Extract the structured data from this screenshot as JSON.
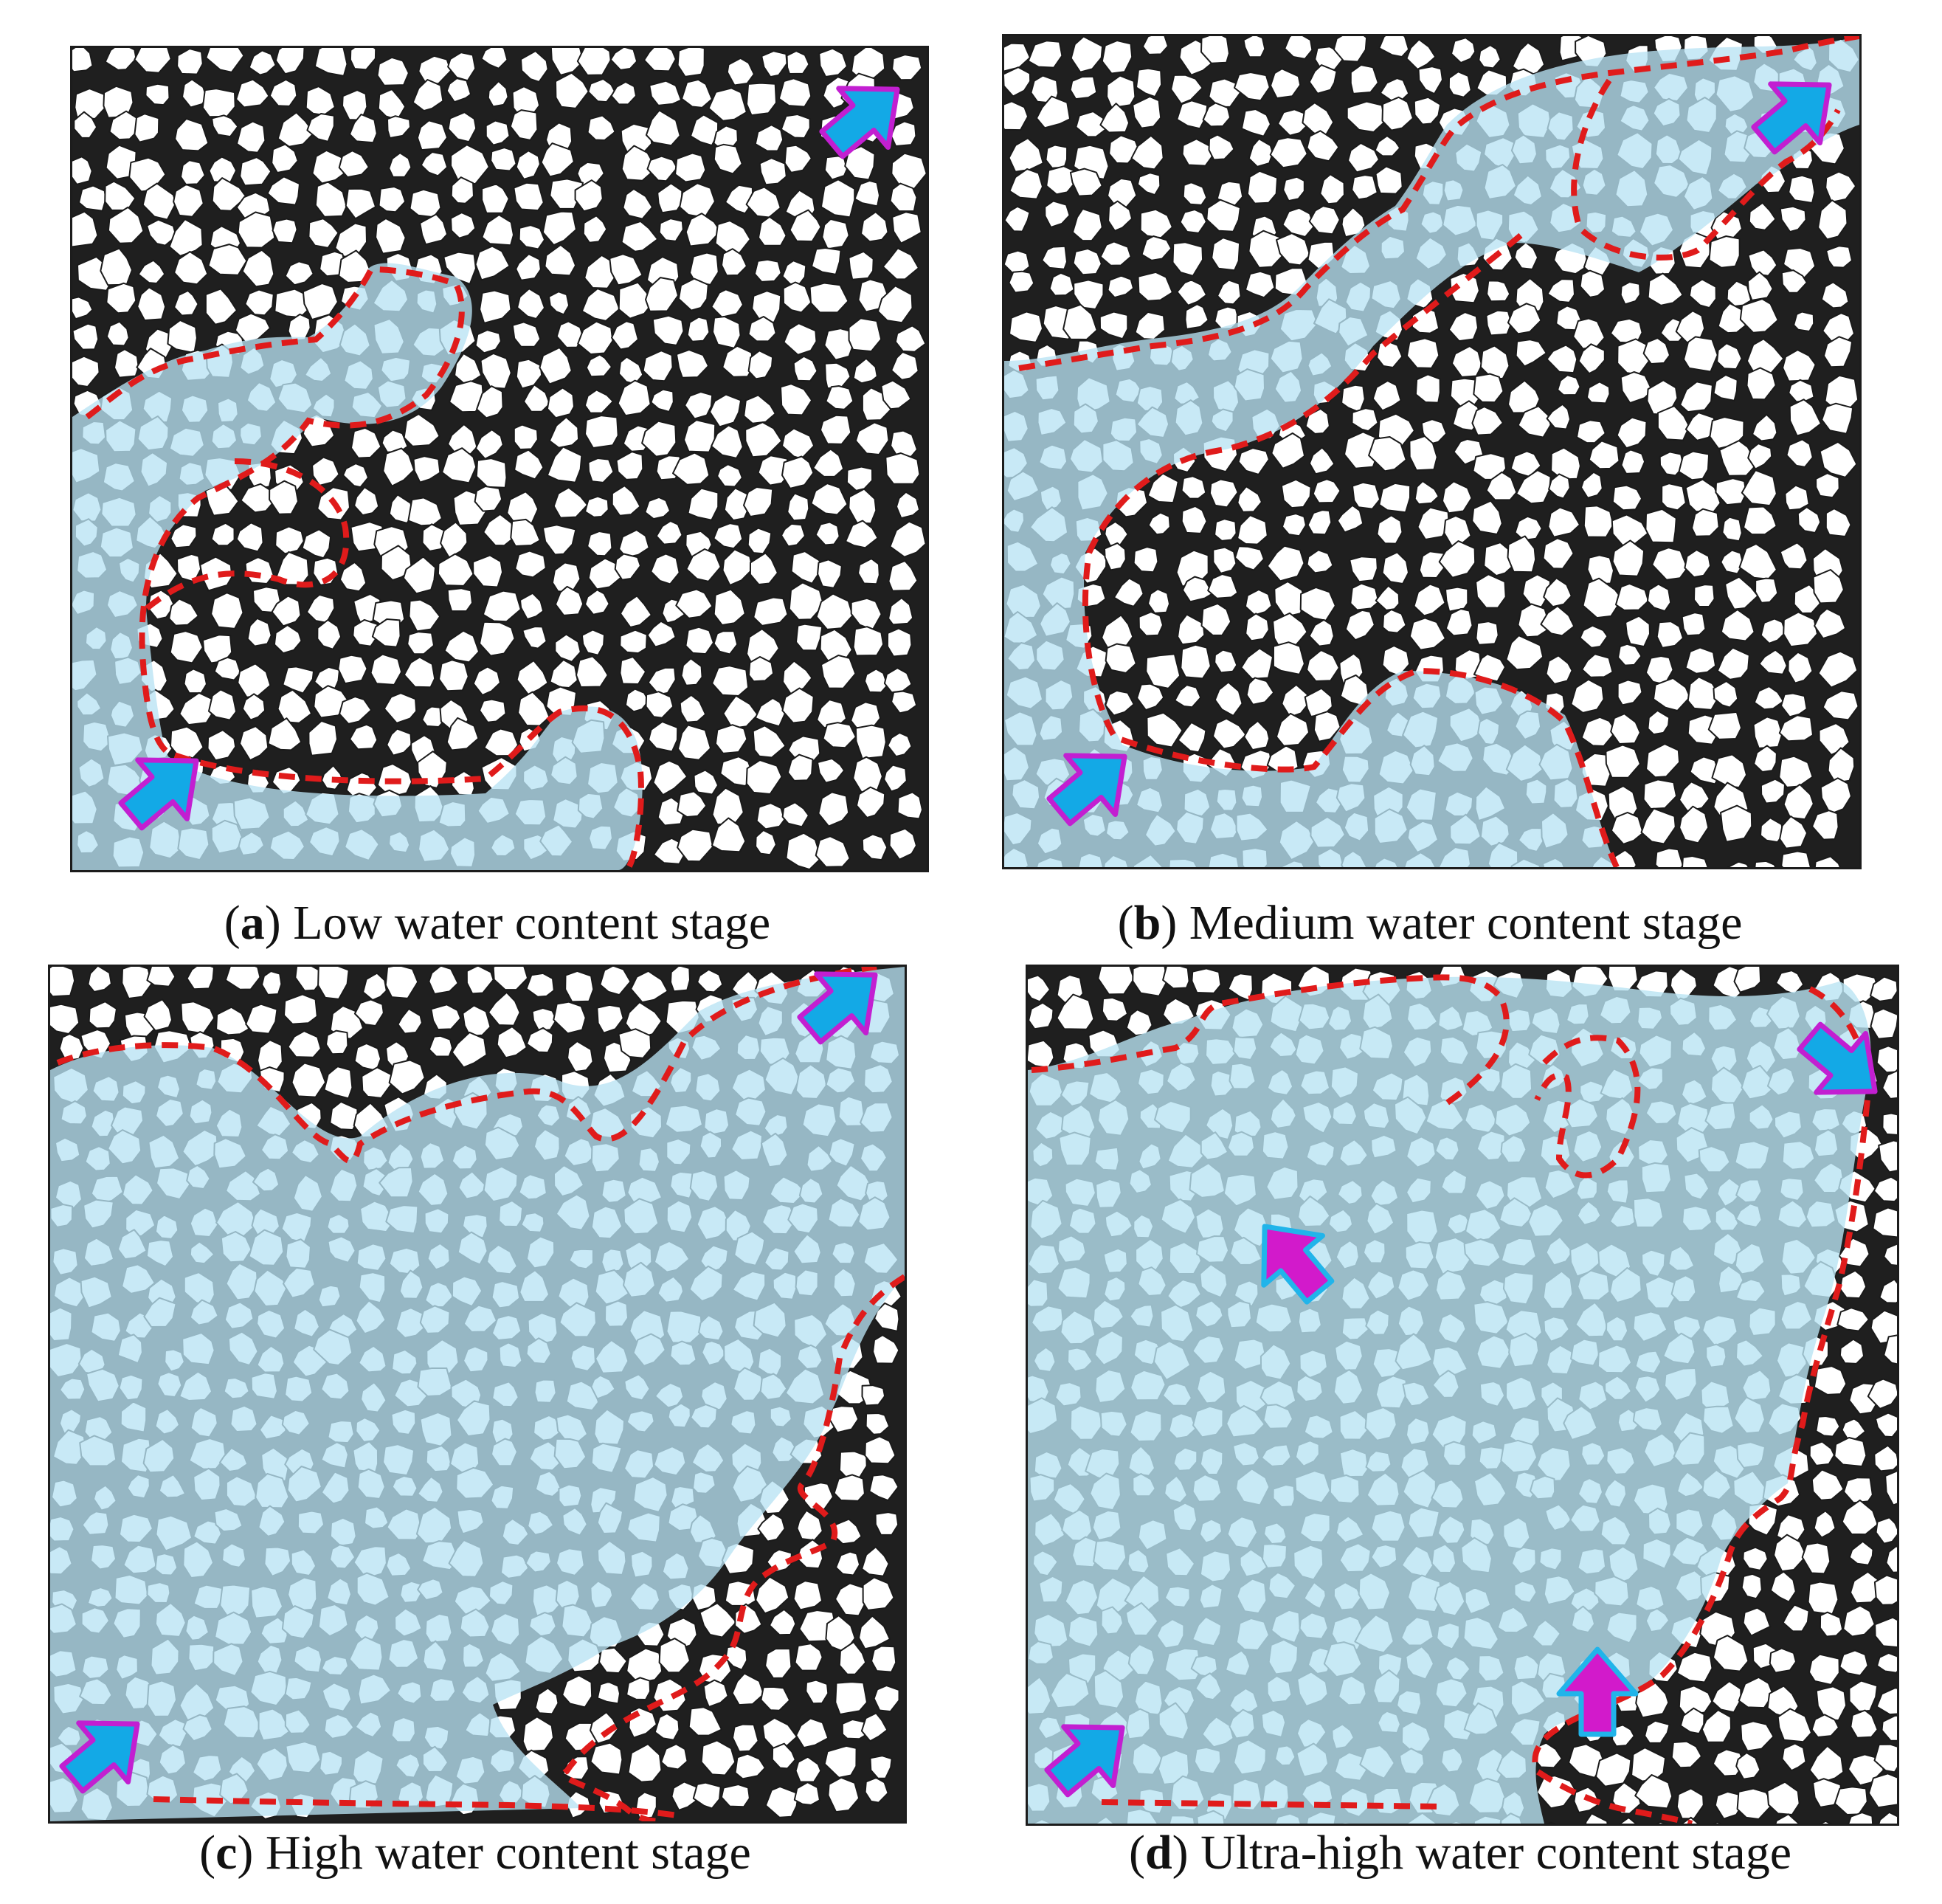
{
  "figure": {
    "panels": [
      {
        "id": "a",
        "letter": "a",
        "caption": "Low water content stage",
        "water_coverage": 0.22,
        "region": "bottom-left corner"
      },
      {
        "id": "b",
        "letter": "b",
        "caption": "Medium water content stage",
        "water_coverage": 0.4,
        "region": "left half and top-right corner"
      },
      {
        "id": "c",
        "letter": "c",
        "caption": "High water content stage",
        "water_coverage": 0.72,
        "region": "most of panel except top strip and bottom-right"
      },
      {
        "id": "d",
        "letter": "d",
        "caption": "Ultra-high water content stage",
        "water_coverage": 0.85,
        "region": "nearly whole panel"
      }
    ],
    "colors": {
      "grain": "#ffffff",
      "grain_outline": "#1a1a1a",
      "pore": "#222222",
      "water": "#b9e3f3",
      "boundary": "#e01b1b",
      "inlet_arrow_fill": "#13a9e6",
      "inlet_arrow_outline": "#c21fd1",
      "secondary_arrow_fill": "#d21acb",
      "secondary_arrow_outline": "#21b4ea"
    },
    "icons": [
      "inlet-arrow-icon",
      "outlet-arrow-icon",
      "secondary-injection-arrow-icon"
    ]
  }
}
